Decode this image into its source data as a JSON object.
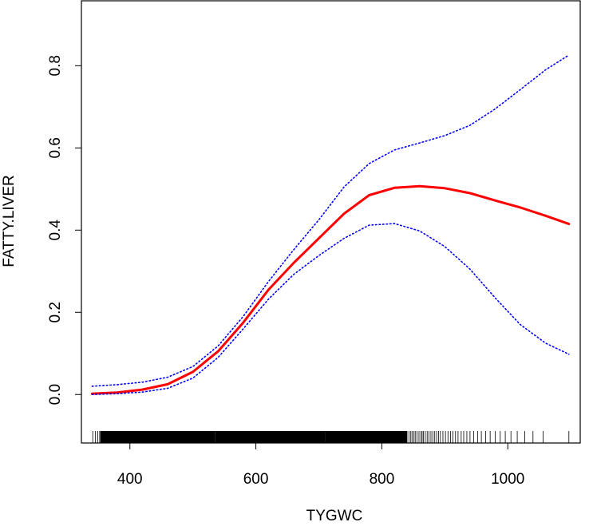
{
  "chart_data": {
    "type": "line",
    "title": "",
    "xlabel": "TYGWC",
    "ylabel": "FATTY.LIVER",
    "xlim": [
      323,
      1115
    ],
    "ylim": [
      -0.118,
      0.958
    ],
    "xticks": [
      400,
      600,
      800,
      1000
    ],
    "yticks": [
      0.0,
      0.2,
      0.4,
      0.6,
      0.8
    ],
    "xtick_labels": [
      "400",
      "600",
      "800",
      "1000"
    ],
    "ytick_labels": [
      "0.0",
      "0.2",
      "0.4",
      "0.6",
      "0.8"
    ],
    "grid": false,
    "legend": "none",
    "series": [
      {
        "role": "estimate",
        "color": "#ff0000",
        "style": "solid",
        "x": [
          340,
          380,
          420,
          460,
          500,
          540,
          580,
          620,
          660,
          700,
          740,
          780,
          820,
          860,
          900,
          940,
          980,
          1020,
          1060,
          1097
        ],
        "y": [
          0.002,
          0.005,
          0.012,
          0.025,
          0.055,
          0.105,
          0.175,
          0.255,
          0.32,
          0.38,
          0.44,
          0.485,
          0.503,
          0.507,
          0.502,
          0.49,
          0.472,
          0.455,
          0.435,
          0.415
        ]
      },
      {
        "role": "upper-ci",
        "color": "#0000ff",
        "style": "dotted",
        "x": [
          340,
          380,
          420,
          460,
          500,
          540,
          580,
          620,
          660,
          700,
          740,
          780,
          820,
          860,
          900,
          940,
          980,
          1020,
          1060,
          1097
        ],
        "y": [
          0.02,
          0.024,
          0.03,
          0.042,
          0.068,
          0.118,
          0.19,
          0.275,
          0.352,
          0.425,
          0.505,
          0.562,
          0.595,
          0.612,
          0.63,
          0.655,
          0.695,
          0.742,
          0.79,
          0.826
        ]
      },
      {
        "role": "lower-ci",
        "color": "#0000ff",
        "style": "dotted",
        "x": [
          340,
          380,
          420,
          460,
          500,
          540,
          580,
          620,
          660,
          700,
          740,
          780,
          820,
          860,
          900,
          940,
          980,
          1020,
          1060,
          1097
        ],
        "y": [
          0.0,
          0.002,
          0.006,
          0.015,
          0.04,
          0.09,
          0.16,
          0.232,
          0.292,
          0.338,
          0.38,
          0.412,
          0.416,
          0.398,
          0.36,
          0.305,
          0.235,
          0.17,
          0.125,
          0.098
        ]
      }
    ],
    "rug": {
      "dense_ranges": [
        [
          353,
          535
        ],
        [
          535,
          710
        ],
        [
          710,
          840
        ]
      ],
      "sparse_points": [
        341,
        345,
        349,
        352,
        356,
        361,
        365,
        368,
        372,
        377,
        381,
        385,
        389,
        392,
        396,
        840,
        843,
        846,
        848,
        851,
        853,
        856,
        859,
        862,
        864,
        866,
        869,
        872,
        875,
        878,
        881,
        884,
        887,
        890,
        893,
        897,
        901,
        905,
        909,
        913,
        917,
        921,
        926,
        930,
        935,
        940,
        946,
        952,
        958,
        965,
        972,
        980,
        988,
        996,
        1005,
        1015,
        1027,
        1040,
        1056,
        1097
      ]
    }
  }
}
